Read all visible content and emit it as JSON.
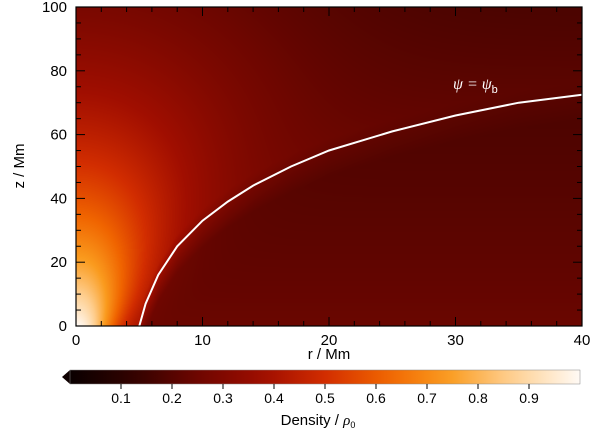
{
  "chart_data": {
    "type": "heatmap",
    "title": "",
    "xlabel": "r / Mm",
    "ylabel": "z / Mm",
    "xlim": [
      0,
      40
    ],
    "ylim": [
      0,
      100
    ],
    "x_ticks": [
      0,
      10,
      20,
      30,
      40
    ],
    "y_ticks": [
      0,
      20,
      40,
      60,
      80,
      100
    ],
    "x_tick_labels": [
      "0",
      "10",
      "20",
      "30",
      "40"
    ],
    "y_tick_labels": [
      "0",
      "20",
      "40",
      "60",
      "80",
      "100"
    ],
    "colormap": "black-red-orange-white (hot)",
    "colorbar": {
      "label_main": "Density / ",
      "label_symbol": "ρ",
      "label_subscript": "0",
      "range": [
        0.0,
        1.0
      ],
      "ticks": [
        "0.1",
        "0.2",
        "0.3",
        "0.4",
        "0.5",
        "0.6",
        "0.7",
        "0.8",
        "0.9"
      ],
      "tick_values": [
        0.1,
        0.2,
        0.3,
        0.4,
        0.5,
        0.6,
        0.7,
        0.8,
        0.9
      ],
      "colors": [
        "#0f0000",
        "#450400",
        "#800800",
        "#b51200",
        "#dd3a00",
        "#f26e00",
        "#fba42c",
        "#fed49a",
        "#fff8f0"
      ]
    },
    "annotation": {
      "main": "ψ = ψ",
      "subscript": "b"
    },
    "contour": {
      "name": "ψ = ψb",
      "color": "#ffffff",
      "x": [
        5.0,
        5.5,
        6.5,
        8.0,
        10.0,
        12.0,
        14.0,
        17.0,
        20.0,
        25.0,
        30.0,
        35.0,
        40.0
      ],
      "y": [
        0,
        7,
        16,
        25,
        33,
        39,
        44,
        50,
        55,
        61,
        66,
        70,
        72.5
      ]
    }
  }
}
